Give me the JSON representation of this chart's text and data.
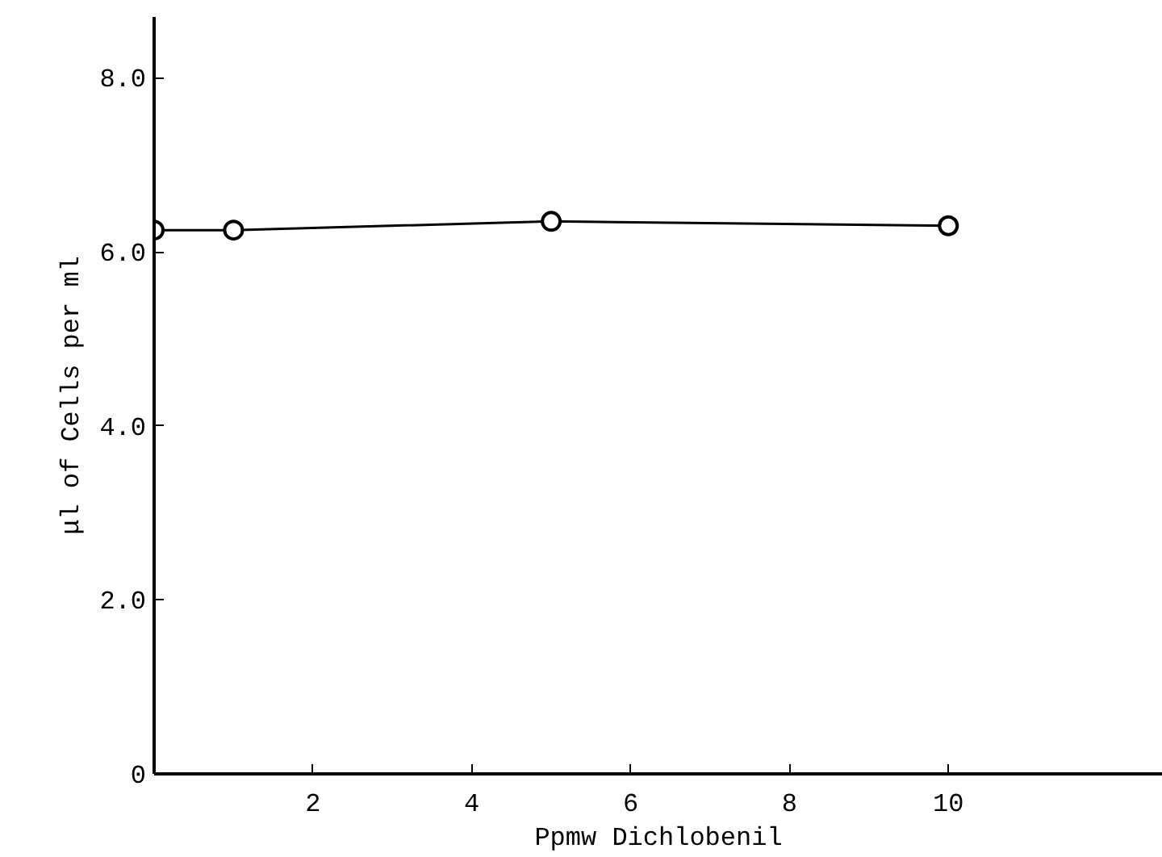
{
  "chart_data": {
    "type": "line",
    "xlabel": "Ppmw Dichlobenil",
    "ylabel": "μl of Cells per ml",
    "x": [
      0,
      1,
      5,
      10
    ],
    "series": [
      {
        "color": "#000000",
        "values": [
          6.25,
          6.25,
          6.35,
          6.3
        ]
      }
    ],
    "xlim": [
      0,
      12.7
    ],
    "ylim": [
      0,
      8.7
    ],
    "xticks": [
      2,
      4,
      6,
      8,
      10
    ],
    "yticks": [
      0,
      {
        "value": 2,
        "label": "2.0"
      },
      {
        "value": 4,
        "label": "4.0"
      },
      {
        "value": 6,
        "label": "6.0"
      },
      {
        "value": 8,
        "label": "8.0"
      }
    ],
    "marker": "circle",
    "line_style": "solid",
    "grid": false
  }
}
